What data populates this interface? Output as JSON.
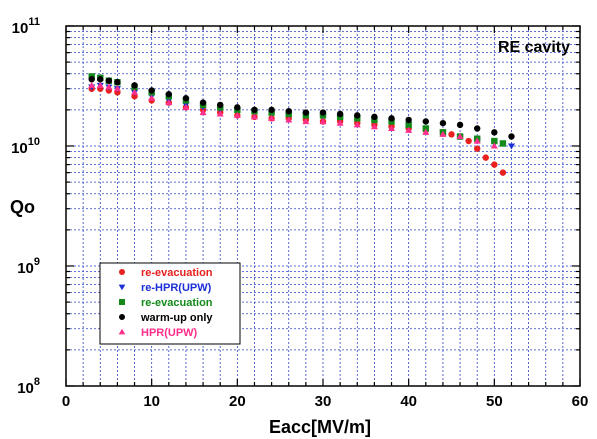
{
  "chart_data": {
    "type": "scatter",
    "title": "",
    "annotation": "RE cavity",
    "xlabel": "Eacc[MV/m]",
    "ylabel": "Qo",
    "xlim": [
      0,
      60
    ],
    "ylim": [
      100000000.0,
      100000000000.0
    ],
    "yscale": "log",
    "grid": true,
    "legend_position": "lower-left",
    "x_ticks": [
      "0",
      "10",
      "20",
      "30",
      "40",
      "50",
      "60"
    ],
    "y_ticks": [
      {
        "base": "10",
        "exp": "8"
      },
      {
        "base": "10",
        "exp": "9"
      },
      {
        "base": "10",
        "exp": "10"
      },
      {
        "base": "10",
        "exp": "11"
      }
    ],
    "series": [
      {
        "name": "re-evacuation",
        "color": "#e8201e",
        "marker": "circle",
        "x": [
          3,
          4,
          5,
          6,
          8,
          10,
          12,
          14,
          16,
          18,
          20,
          22,
          24,
          26,
          28,
          30,
          32,
          34,
          36,
          38,
          40,
          42,
          44,
          45,
          46,
          47,
          48,
          49,
          50,
          51
        ],
        "y": [
          30000000000.0,
          30000000000.0,
          29000000000.0,
          28000000000.0,
          26000000000.0,
          24000000000.0,
          23000000000.0,
          21000000000.0,
          20000000000.0,
          19000000000.0,
          18000000000.0,
          17500000000.0,
          17000000000.0,
          17000000000.0,
          16500000000.0,
          16000000000.0,
          16000000000.0,
          15500000000.0,
          15000000000.0,
          14500000000.0,
          14000000000.0,
          13500000000.0,
          13000000000.0,
          12500000000.0,
          12000000000.0,
          11000000000.0,
          9500000000.0,
          8000000000.0,
          7000000000.0,
          6000000000.0
        ]
      },
      {
        "name": "re-HPR(UPW)",
        "color": "#1a2fd6",
        "marker": "triangle-down",
        "x": [
          3,
          4,
          5,
          6,
          8,
          10,
          12,
          14,
          16,
          18,
          20,
          22,
          24,
          26,
          28,
          30,
          32,
          34,
          36,
          38,
          40,
          42,
          44,
          46,
          48,
          50,
          52
        ],
        "y": [
          31000000000.0,
          32000000000.0,
          31000000000.0,
          30000000000.0,
          28000000000.0,
          26000000000.0,
          24000000000.0,
          22000000000.0,
          21000000000.0,
          20000000000.0,
          19500000000.0,
          19000000000.0,
          18500000000.0,
          18000000000.0,
          18000000000.0,
          17500000000.0,
          17000000000.0,
          17000000000.0,
          16500000000.0,
          16000000000.0,
          15000000000.0,
          14000000000.0,
          13000000000.0,
          12000000000.0,
          11000000000.0,
          10500000000.0,
          10000000000.0
        ]
      },
      {
        "name": "re-evacuation",
        "color": "#138a1a",
        "marker": "square",
        "x": [
          3,
          4,
          5,
          6,
          8,
          10,
          12,
          14,
          16,
          18,
          20,
          22,
          24,
          26,
          28,
          30,
          32,
          34,
          36,
          38,
          40,
          42,
          44,
          46,
          48,
          50,
          51
        ],
        "y": [
          38000000000.0,
          37000000000.0,
          35000000000.0,
          34000000000.0,
          31000000000.0,
          28000000000.0,
          26000000000.0,
          24000000000.0,
          22000000000.0,
          21000000000.0,
          20000000000.0,
          19500000000.0,
          19000000000.0,
          18500000000.0,
          18000000000.0,
          18000000000.0,
          17500000000.0,
          17000000000.0,
          16500000000.0,
          16000000000.0,
          15000000000.0,
          14000000000.0,
          13000000000.0,
          12000000000.0,
          11500000000.0,
          11000000000.0,
          10500000000.0
        ]
      },
      {
        "name": "warm-up only",
        "color": "#000000",
        "marker": "circle",
        "x": [
          3,
          4,
          5,
          6,
          8,
          10,
          12,
          14,
          16,
          18,
          20,
          22,
          24,
          26,
          28,
          30,
          32,
          34,
          36,
          38,
          40,
          42,
          44,
          46,
          48,
          50,
          52
        ],
        "y": [
          36000000000.0,
          36000000000.0,
          35000000000.0,
          34000000000.0,
          32000000000.0,
          29000000000.0,
          27000000000.0,
          25000000000.0,
          23000000000.0,
          22000000000.0,
          21000000000.0,
          20000000000.0,
          20000000000.0,
          19500000000.0,
          19000000000.0,
          19000000000.0,
          18500000000.0,
          18000000000.0,
          17500000000.0,
          17000000000.0,
          16500000000.0,
          16000000000.0,
          15500000000.0,
          15000000000.0,
          14000000000.0,
          13000000000.0,
          12000000000.0
        ]
      },
      {
        "name": "HPR(UPW)",
        "color": "#ff2f8c",
        "marker": "triangle-up",
        "x": [
          3,
          4,
          5,
          6,
          8,
          10,
          12,
          14,
          16,
          18,
          20,
          22,
          24,
          26,
          28,
          30,
          32,
          34,
          36,
          38,
          40,
          42,
          44,
          46,
          48,
          50
        ],
        "y": [
          32000000000.0,
          32000000000.0,
          31000000000.0,
          30000000000.0,
          28000000000.0,
          25000000000.0,
          23000000000.0,
          21000000000.0,
          19000000000.0,
          18500000000.0,
          18000000000.0,
          17500000000.0,
          17000000000.0,
          16500000000.0,
          16000000000.0,
          16000000000.0,
          15500000000.0,
          15000000000.0,
          14500000000.0,
          14000000000.0,
          13500000000.0,
          13000000000.0,
          12500000000.0,
          12000000000.0,
          11000000000.0,
          10000000000.0
        ]
      }
    ]
  }
}
